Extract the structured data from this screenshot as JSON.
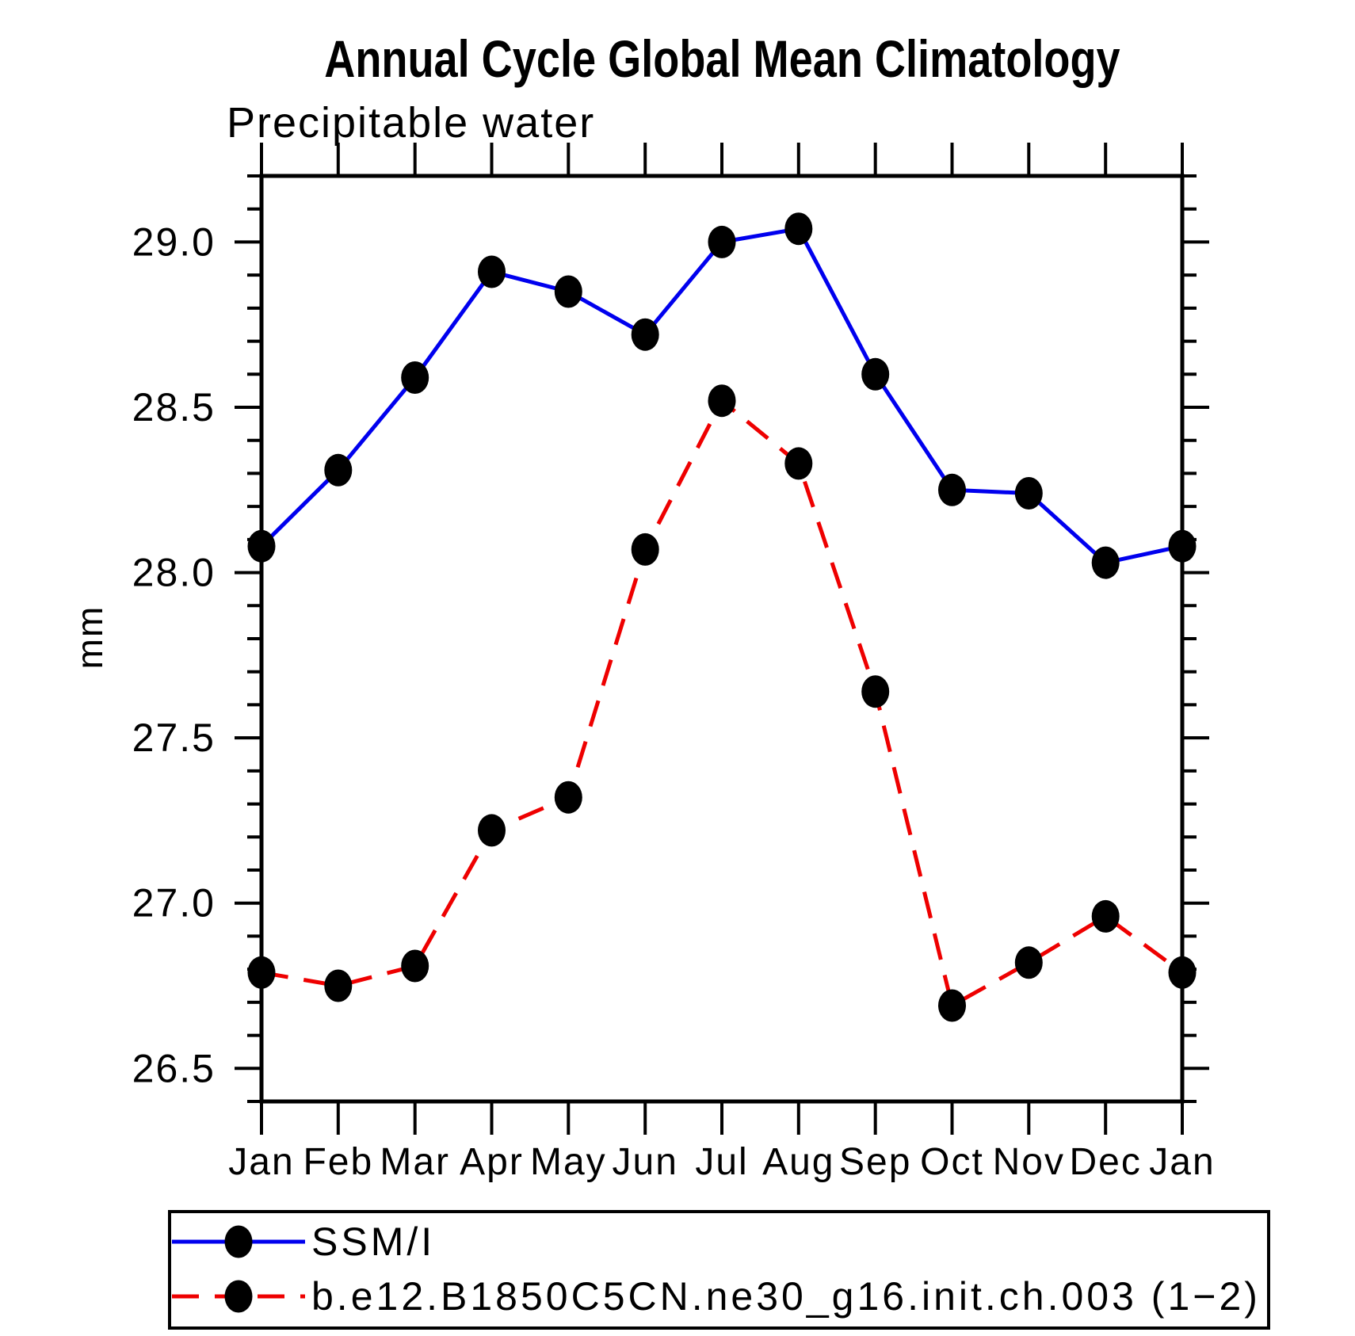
{
  "chart_data": {
    "type": "line",
    "title": "Annual Cycle Global Mean Climatology",
    "subtitle": "Precipitable water",
    "ylabel": "mm",
    "xlabel": "",
    "grid": false,
    "legend_position": "bottom-left-box",
    "categories": [
      "Jan",
      "Feb",
      "Mar",
      "Apr",
      "May",
      "Jun",
      "Jul",
      "Aug",
      "Sep",
      "Oct",
      "Nov",
      "Dec",
      "Jan"
    ],
    "ylim": [
      26.4,
      29.2
    ],
    "ytick_major": [
      26.5,
      27.0,
      27.5,
      28.0,
      28.5,
      29.0
    ],
    "ytick_labels": [
      "26.5",
      "27.0",
      "27.5",
      "28.0",
      "28.5",
      "29.0"
    ],
    "ytick_minor_step": 0.1,
    "series": [
      {
        "name": "SSM/I",
        "color": "#0000ee",
        "style": "solid",
        "marker": "filled-dot",
        "marker_color": "#000000",
        "values": [
          28.08,
          28.31,
          28.59,
          28.91,
          28.85,
          28.72,
          29.0,
          29.04,
          28.6,
          28.25,
          28.24,
          28.03,
          28.08
        ]
      },
      {
        "name": "b.e12.B1850C5CN.ne30_g16.init.ch.003 (1−2)",
        "color": "#ee0000",
        "style": "dashed",
        "marker": "filled-dot",
        "marker_color": "#000000",
        "values": [
          26.79,
          26.75,
          26.81,
          27.22,
          27.32,
          28.07,
          28.52,
          28.33,
          27.64,
          26.69,
          26.82,
          26.96,
          26.79
        ]
      }
    ]
  }
}
